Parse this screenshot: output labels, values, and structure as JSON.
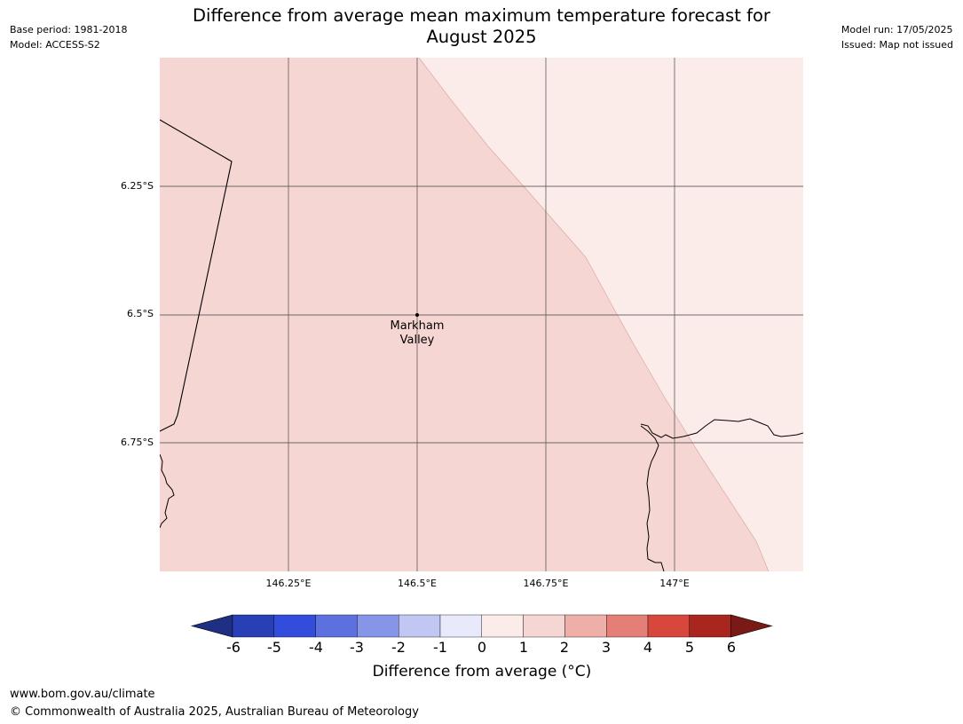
{
  "header": {
    "title_line1": "Difference from average mean maximum temperature forecast for",
    "title_line2": "August 2025",
    "base_period": "Base period: 1981-2018",
    "model": "Model: ACCESS-S2",
    "model_run": "Model run: 17/05/2025",
    "issued": "Issued: Map not issued"
  },
  "map": {
    "lat_ticks": [
      "6.25°S",
      "6.5°S",
      "6.75°S"
    ],
    "lon_ticks": [
      "146.25°E",
      "146.5°E",
      "146.75°E",
      "147°E"
    ],
    "place": {
      "name_line1": "Markham",
      "name_line2": "Valley"
    },
    "region_colors": {
      "range_1_2": "#f5d6d3",
      "range_0_1": "#fbebe9"
    }
  },
  "colorbar": {
    "title": "Difference from average (°C)",
    "tick_labels": [
      "-6",
      "-5",
      "-4",
      "-3",
      "-2",
      "-1",
      "0",
      "1",
      "2",
      "3",
      "4",
      "5",
      "6"
    ],
    "colors": [
      "#1f2f84",
      "#283fb5",
      "#324ddb",
      "#5c70e0",
      "#8795e9",
      "#c1c7f2",
      "#e8eafc",
      "#fbebe9",
      "#f5d6d3",
      "#edafa8",
      "#e37f77",
      "#d8473b",
      "#a8261e",
      "#7a1a16"
    ]
  },
  "footer": {
    "url": "www.bom.gov.au/climate",
    "copyright": "© Commonwealth of Australia 2025, Australian Bureau of Meteorology"
  }
}
